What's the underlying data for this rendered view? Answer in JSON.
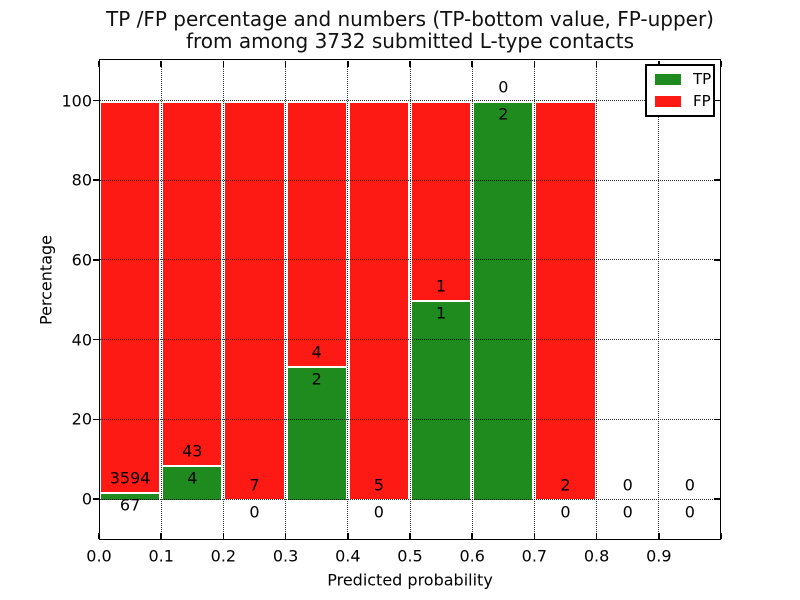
{
  "title": {
    "line1": "TP /FP percentage and numbers (TP-bottom value, FP-upper)",
    "line2": "from among 3732 submitted L-type contacts"
  },
  "axes": {
    "xlabel": "Predicted probability",
    "ylabel": "Percentage",
    "x_tick_labels": [
      "0.0",
      "0.1",
      "0.2",
      "0.3",
      "0.4",
      "0.5",
      "0.6",
      "0.7",
      "0.8",
      "0.9"
    ],
    "y_tick_labels": [
      "0",
      "20",
      "40",
      "60",
      "80",
      "100"
    ]
  },
  "legend": {
    "items": [
      {
        "label": "TP",
        "color": "#1f8b1f"
      },
      {
        "label": "FP",
        "color": "#fd1a14"
      }
    ]
  },
  "chart_data": {
    "type": "bar",
    "stacked": true,
    "normalized": "each bin scaled to 100%, counts shown as labels (TP below boundary, FP above)",
    "title": "TP /FP percentage and numbers (TP-bottom value, FP-upper) from among 3732 submitted L-type contacts",
    "xlabel": "Predicted probability",
    "ylabel": "Percentage",
    "xlim": [
      0.0,
      1.0
    ],
    "ylim": [
      0,
      100
    ],
    "grid": "dotted, both axes, drawn over bars",
    "legend_position": "upper right",
    "total_submitted_contacts": 3732,
    "bin_edges": [
      0.0,
      0.1,
      0.2,
      0.3,
      0.4,
      0.5,
      0.6,
      0.7,
      0.8,
      0.9,
      1.0
    ],
    "categories": [
      "0.0-0.1",
      "0.1-0.2",
      "0.2-0.3",
      "0.3-0.4",
      "0.4-0.5",
      "0.5-0.6",
      "0.6-0.7",
      "0.7-0.8",
      "0.8-0.9",
      "0.9-1.0"
    ],
    "series": [
      {
        "name": "TP",
        "color": "#1f8b1f",
        "counts": [
          67,
          4,
          0,
          2,
          0,
          1,
          2,
          0,
          0,
          0
        ]
      },
      {
        "name": "FP",
        "color": "#fd1a14",
        "counts": [
          3594,
          43,
          7,
          4,
          5,
          1,
          0,
          2,
          0,
          0
        ]
      }
    ],
    "tp_percent_by_bin": [
      1.83,
      8.51,
      0.0,
      33.33,
      0.0,
      50.0,
      100.0,
      0.0,
      0.0,
      0.0
    ]
  }
}
